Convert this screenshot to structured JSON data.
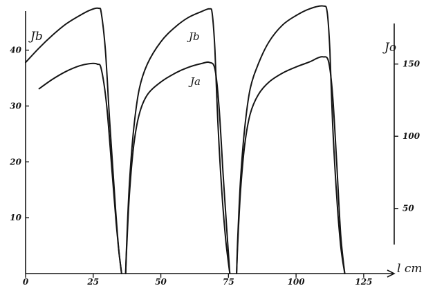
{
  "chart_data": {
    "type": "line",
    "x_axis": {
      "label": "l cm",
      "range": [
        0,
        135
      ],
      "ticks": [
        0,
        25,
        50,
        75,
        100,
        125
      ],
      "tick_labels": [
        "0",
        "25",
        "50",
        "75",
        "100",
        "125"
      ]
    },
    "y_axes": [
      {
        "side": "left",
        "label": "J_b",
        "label_display": "Jb",
        "range": [
          0,
          47
        ],
        "ticks": [
          10,
          20,
          30,
          40
        ],
        "tick_labels": [
          "10",
          "20",
          "30",
          "40"
        ]
      },
      {
        "side": "right",
        "label": "J_o",
        "label_display": "Jo",
        "range": [
          25,
          180
        ],
        "ticks": [
          50,
          100,
          150
        ],
        "tick_labels": [
          "50",
          "100",
          "150"
        ]
      }
    ],
    "grid": false,
    "legend": "inline",
    "series": [
      {
        "name": "Jb",
        "axis": "left",
        "segments": [
          {
            "x": [
              0,
              5,
              10,
              15,
              20,
              24,
              27,
              28,
              29.5,
              31,
              32.5,
              33.5,
              34.5,
              35.5
            ],
            "y": [
              37.8,
              40.4,
              42.7,
              44.7,
              46.2,
              47.2,
              47.5,
              46.6,
              40,
              28,
              17,
              10,
              4,
              0
            ]
          },
          {
            "x": [
              37,
              37.5,
              38.5,
              40,
              42,
              45,
              50,
              55,
              60,
              65,
              68,
              69,
              70,
              71,
              72.5,
              74,
              75.5
            ],
            "y": [
              0,
              7,
              17,
              26,
              33,
              37.5,
              41.5,
              44,
              45.8,
              46.9,
              47.4,
              46.5,
              40,
              28,
              15,
              6,
              0
            ]
          },
          {
            "x": [
              78,
              78.5,
              79.5,
              81,
              83,
              86,
              90,
              95,
              100,
              105,
              110,
              111.5,
              112.5,
              113.5,
              115,
              116.5,
              118
            ],
            "y": [
              0,
              7,
              17,
              26,
              33,
              37.5,
              41.5,
              44.5,
              46.2,
              47.4,
              47.9,
              46.8,
              40,
              27,
              14,
              5,
              0
            ]
          }
        ]
      },
      {
        "name": "Ja",
        "axis": "left",
        "segments": [
          {
            "x": [
              5,
              10,
              15,
              20,
              24,
              26.5,
              28,
              30,
              32,
              33.5,
              34.5,
              35.5
            ],
            "y": [
              33.1,
              34.8,
              36.2,
              37.2,
              37.6,
              37.5,
              36.6,
              30,
              18,
              9,
              4,
              0
            ]
          },
          {
            "x": [
              37,
              37.5,
              38.5,
              40,
              42,
              45,
              50,
              55,
              60,
              65,
              68,
              70,
              71.5,
              73,
              74.5,
              75.5
            ],
            "y": [
              0,
              6,
              15,
              23,
              28.5,
              32,
              34.3,
              35.8,
              36.9,
              37.6,
              37.8,
              36.6,
              30,
              18,
              7,
              0
            ]
          },
          {
            "x": [
              78,
              78.5,
              79.5,
              81,
              83,
              86,
              90,
              95,
              100,
              105,
              108,
              110,
              112,
              113.5,
              115,
              116.5,
              118
            ],
            "y": [
              0,
              6,
              15,
              23,
              28.5,
              32,
              34.3,
              35.9,
              37,
              37.9,
              38.6,
              38.8,
              38,
              32,
              20,
              7,
              0
            ]
          }
        ]
      }
    ]
  }
}
